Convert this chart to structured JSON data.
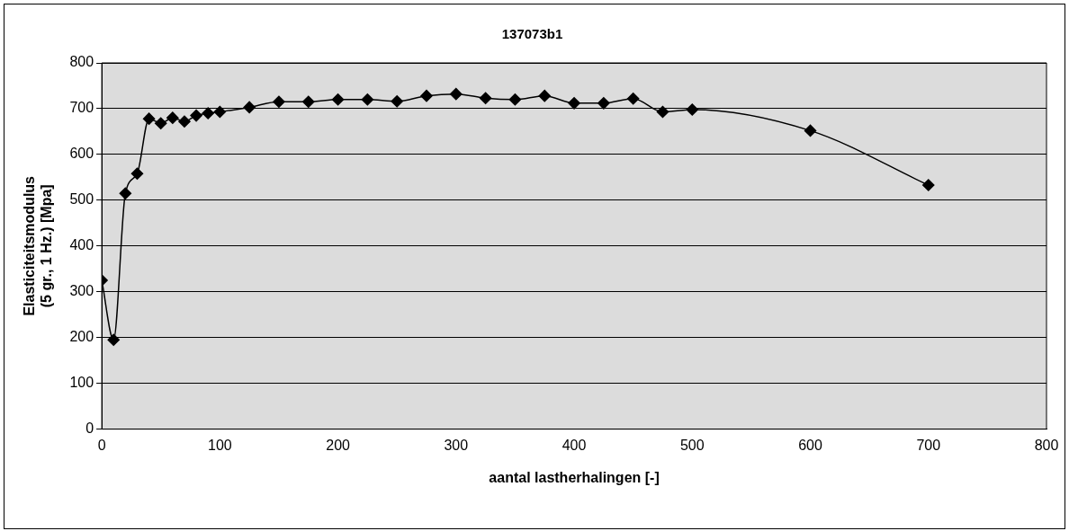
{
  "chart_data": {
    "type": "line",
    "title": "137073b1",
    "xlabel": "aantal lastherhalingen [-]",
    "ylabel": "Elasticiteitsmodulus\n(5 gr., 1 Hz.) [Mpa]",
    "x": [
      0,
      10,
      20,
      30,
      40,
      50,
      60,
      70,
      80,
      90,
      100,
      125,
      150,
      175,
      200,
      225,
      250,
      275,
      300,
      325,
      350,
      375,
      400,
      425,
      450,
      475,
      500,
      600,
      700
    ],
    "series": [
      {
        "color": "#000000",
        "values": [
          325,
          195,
          515,
          558,
          678,
          668,
          680,
          672,
          685,
          690,
          693,
          703,
          715,
          715,
          720,
          720,
          716,
          728,
          732,
          723,
          720,
          728,
          712,
          712,
          722,
          693,
          698,
          652,
          533
        ]
      }
    ],
    "xlim": [
      0,
      800
    ],
    "xticks": [
      0,
      100,
      200,
      300,
      400,
      500,
      600,
      700,
      800
    ],
    "ylim": [
      0,
      800
    ],
    "yticks": [
      0,
      100,
      200,
      300,
      400,
      500,
      600,
      700,
      800
    ],
    "grid": "y",
    "legend": false,
    "marker": "diamond",
    "line_style": "solid"
  }
}
